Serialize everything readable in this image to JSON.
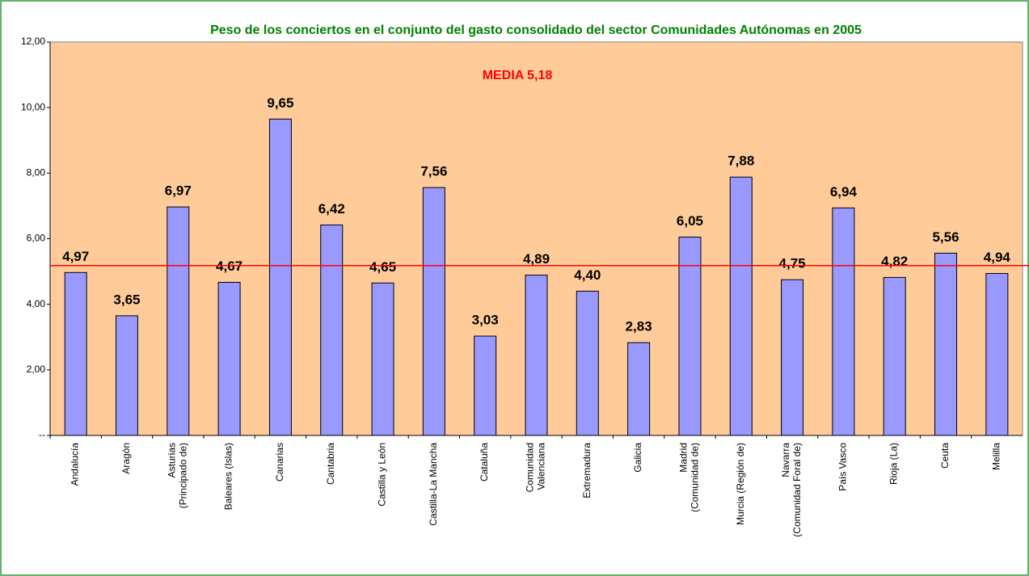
{
  "chart_data": {
    "type": "bar",
    "title": "Peso de los conciertos en el conjunto del gasto consolidado del sector Comunidades Autónomas en 2005",
    "categories": [
      "Andalucía",
      "Aragón",
      "Asturias\n(Principado de)",
      "Baleares (Islas)",
      "Canarias",
      "Cantabria",
      "Castilla y León",
      "Castilla-La Mancha",
      "Cataluña",
      "Comunidad\nValenciana",
      "Extremadura",
      "Galicia",
      "Madrid\n(Comunidad de)",
      "Murcia (Región de)",
      "Navarra\n(Comunidad Foral de)",
      "País Vasco",
      "Rioja (La)",
      "Ceuta",
      "Melilla"
    ],
    "values": [
      4.97,
      3.65,
      6.97,
      4.67,
      9.65,
      6.42,
      4.65,
      7.56,
      3.03,
      4.89,
      4.4,
      2.83,
      6.05,
      7.88,
      4.75,
      6.94,
      4.82,
      5.56,
      4.94
    ],
    "value_labels": [
      "4,97",
      "3,65",
      "6,97",
      "4,67",
      "9,65",
      "6,42",
      "4,65",
      "7,56",
      "3,03",
      "4,89",
      "4,40",
      "2,83",
      "6,05",
      "7,88",
      "4,75",
      "6,94",
      "4,82",
      "5,56",
      "4,94"
    ],
    "color": "#9999ff",
    "ylim": [
      0,
      12
    ],
    "yticks": [
      {
        "value": 0,
        "label": "--"
      },
      {
        "value": 2,
        "label": "2,00"
      },
      {
        "value": 4,
        "label": "4,00"
      },
      {
        "value": 6,
        "label": "6,00"
      },
      {
        "value": 8,
        "label": "8,00"
      },
      {
        "value": 10,
        "label": "10,00"
      },
      {
        "value": 12,
        "label": "12,00"
      }
    ],
    "reference_line": {
      "value": 5.18,
      "label": "MEDIA 5,18",
      "color": "#ff0000"
    }
  }
}
